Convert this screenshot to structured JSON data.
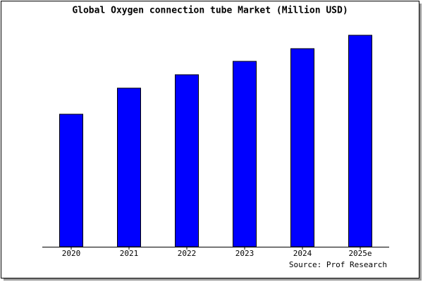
{
  "chart_data": {
    "type": "bar",
    "title": "Global Oxygen connection tube Market (Million USD)",
    "categories": [
      "2020",
      "2021",
      "2022",
      "2023",
      "2024",
      "2025e"
    ],
    "values": [
      188,
      225,
      244,
      263,
      281,
      300
    ],
    "color": "#0000ff",
    "ylim": [
      0,
      302
    ],
    "source": "Source: Prof Research"
  }
}
